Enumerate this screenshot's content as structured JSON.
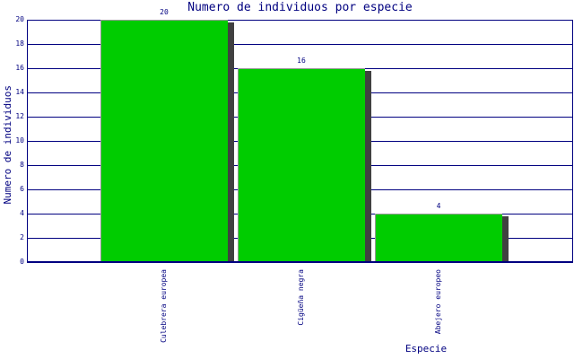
{
  "chart_data": {
    "type": "bar",
    "title": "Numero de individuos por especie",
    "xlabel": "Especie",
    "ylabel": "Numero de individuos",
    "categories": [
      "Culebrera europea",
      "Cigüeña negra",
      "Abejero europeo"
    ],
    "values": [
      20,
      16,
      4
    ],
    "yticks": [
      0,
      2,
      4,
      6,
      8,
      10,
      12,
      14,
      16,
      18,
      20
    ],
    "ylim": [
      0,
      20
    ],
    "grid": true,
    "legend": "none",
    "colors": {
      "bar_fill": "#00CC00",
      "bar_outline": "#999999",
      "bar_shadow": "#404040",
      "axis_and_text": "#000080",
      "background": "#FFFFFF"
    }
  }
}
